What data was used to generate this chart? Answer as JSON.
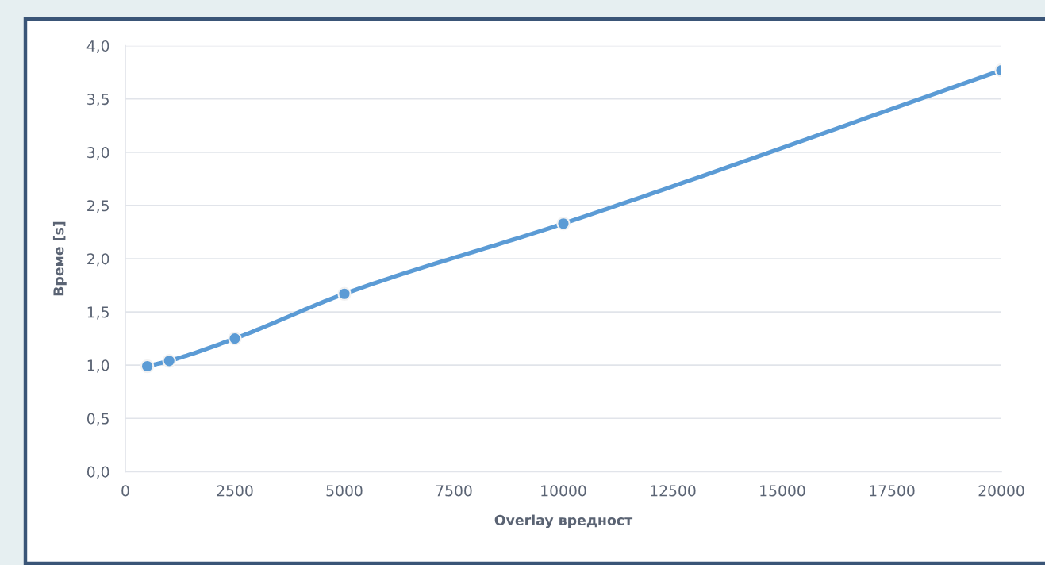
{
  "chart_data": {
    "type": "line",
    "xlabel": "Overlay вредност",
    "ylabel": "Време [s]",
    "x": [
      500,
      1000,
      2500,
      5000,
      10000,
      20000
    ],
    "series": [
      {
        "color": "#5b9bd5",
        "values": [
          0.99,
          1.04,
          1.25,
          1.67,
          2.33,
          3.77
        ]
      }
    ],
    "xlim": [
      0,
      20000
    ],
    "xticks": [
      0,
      2500,
      5000,
      7500,
      10000,
      12500,
      15000,
      17500,
      20000
    ],
    "ylim": [
      0,
      4.0
    ],
    "yticks": [
      {
        "value": 0,
        "label": "0,0"
      },
      {
        "value": 0.5,
        "label": "0,5"
      },
      {
        "value": 1.0,
        "label": "1,0"
      },
      {
        "value": 1.5,
        "label": "1,5"
      },
      {
        "value": 2.0,
        "label": "2,0"
      },
      {
        "value": 2.5,
        "label": "2,5"
      },
      {
        "value": 3.0,
        "label": "3,0"
      },
      {
        "value": 3.5,
        "label": "3,5"
      },
      {
        "value": 4.0,
        "label": "4,0"
      }
    ],
    "grid": "y",
    "marker": "circle",
    "line_style": "solid"
  }
}
